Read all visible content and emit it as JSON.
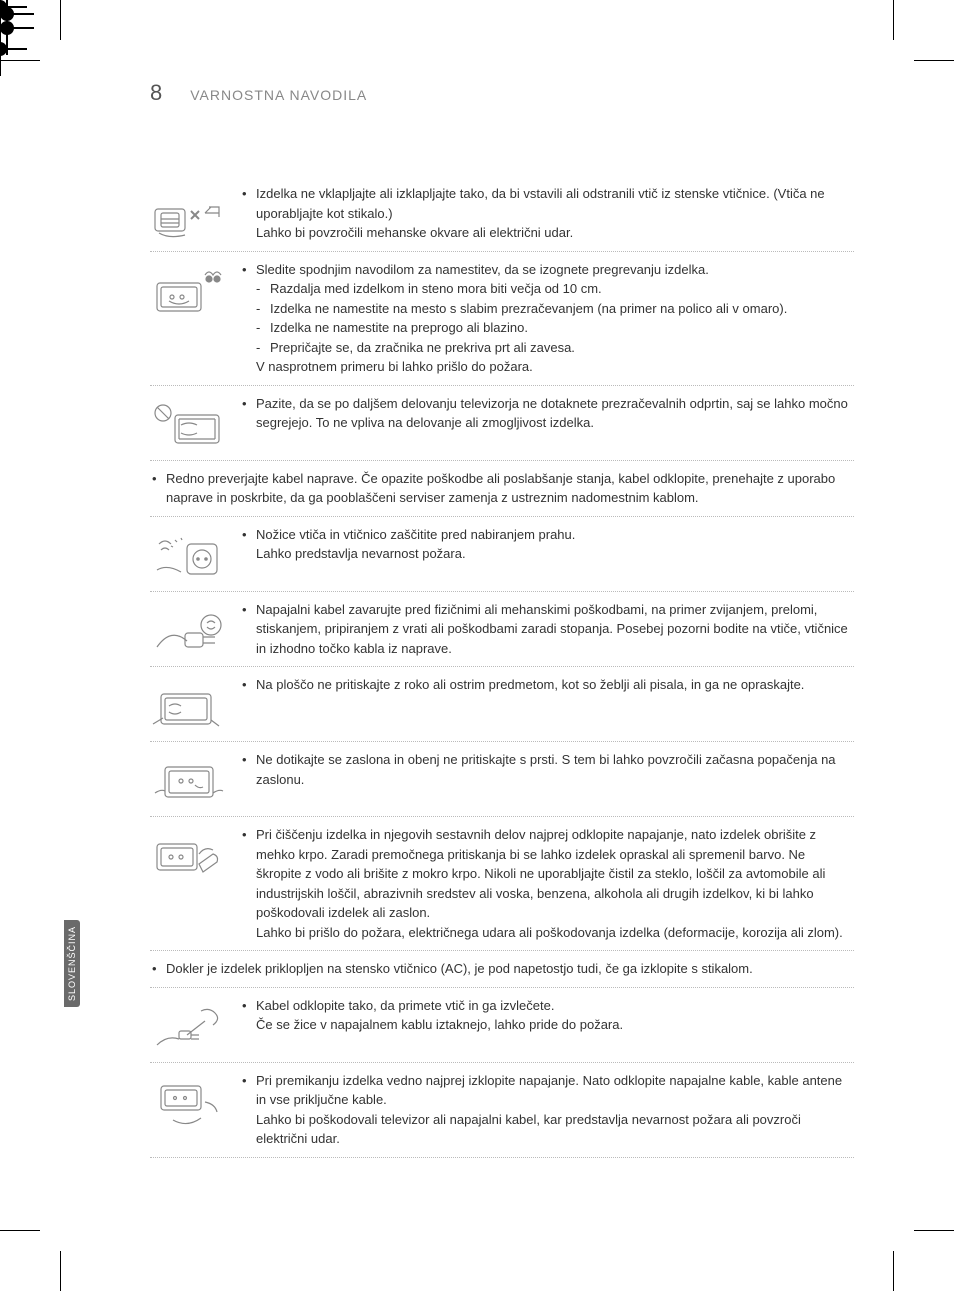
{
  "header": {
    "page_no": "8",
    "title": "VARNOSTNA NAVODILA"
  },
  "sidebar": {
    "label": "SLOVENŠČINA"
  },
  "items": [
    {
      "kind": "icon",
      "icon": "plug-x",
      "bullets": [
        {
          "type": "dot",
          "text": "Izdelka ne vklapljajte ali izklapljajte tako, da bi vstavili ali odstranili vtič iz stenske vtičnice. (Vtiča ne uporabljajte kot stikalo.)"
        },
        {
          "type": "plain",
          "text": "Lahko bi povzročili mehanske okvare ali električni udar."
        }
      ]
    },
    {
      "kind": "icon",
      "icon": "tv-fire",
      "bullets": [
        {
          "type": "dot",
          "text": "Sledite spodnjim navodilom za namestitev, da se izognete pregrevanju izdelka."
        },
        {
          "type": "dash",
          "indent": true,
          "text": "Razdalja med izdelkom in steno mora biti večja od 10 cm."
        },
        {
          "type": "dash",
          "indent": true,
          "text": "Izdelka ne namestite na mesto s slabim prezračevanjem (na primer na polico ali v omaro)."
        },
        {
          "type": "dash",
          "indent": true,
          "text": "Izdelka ne namestite na preprogo ali blazino."
        },
        {
          "type": "dash",
          "indent": true,
          "text": "Prepričajte se, da zračnika ne prekriva prt ali zavesa."
        },
        {
          "type": "plain",
          "text": "V nasprotnem primeru bi lahko prišlo do požara."
        }
      ]
    },
    {
      "kind": "icon",
      "icon": "prohibit-tv",
      "bullets": [
        {
          "type": "dot",
          "text": "Pazite, da se po daljšem delovanju televizorja ne dotaknete prezračevalnih odprtin, saj se lahko močno segrejejo. To ne vpliva na delovanje ali zmogljivost izdelka."
        }
      ]
    },
    {
      "kind": "full",
      "bullets": [
        {
          "type": "dot",
          "text": "Redno preverjajte kabel naprave. Če opazite poškodbe ali poslabšanje stanja, kabel odklopite, prenehajte z uporabo naprave in poskrbite, da ga pooblaščeni serviser zamenja z ustreznim nadomestnim kablom."
        }
      ]
    },
    {
      "kind": "icon",
      "icon": "dust-socket",
      "bullets": [
        {
          "type": "dot",
          "text": "Nožice vtiča in vtičnico zaščitite pred nabiranjem prahu."
        },
        {
          "type": "plain",
          "text": "Lahko predstavlja nevarnost požara."
        }
      ]
    },
    {
      "kind": "icon",
      "icon": "cable-hand",
      "bullets": [
        {
          "type": "dot",
          "text": "Napajalni kabel zavarujte pred fizičnimi ali mehanskimi poškodbami, na primer zvijanjem, prelomi, stiskanjem, pripiranjem z vrati ali poškodbami zaradi stopanja. Posebej pozorni bodite na vtiče, vtičnice in izhodno točko kabla iz naprave."
        }
      ]
    },
    {
      "kind": "icon",
      "icon": "press-screen",
      "bullets": [
        {
          "type": "dot",
          "text": "Na ploščo ne pritiskajte z roko ali ostrim predmetom, kot so žeblji ali pisala, in ga ne opraskajte."
        }
      ]
    },
    {
      "kind": "icon",
      "icon": "touch-screen",
      "bullets": [
        {
          "type": "dot",
          "text": "Ne dotikajte se zaslona in obenj ne pritiskajte s prsti. S tem bi lahko povzročili začasna popačenja na zaslonu."
        }
      ]
    },
    {
      "kind": "icon",
      "icon": "clean-tv",
      "bullets": [
        {
          "type": "dot",
          "text": "Pri čiščenju izdelka in njegovih sestavnih delov najprej odklopite napajanje, nato izdelek obrišite z mehko krpo. Zaradi premočnega pritiskanja bi se lahko izdelek opraskal ali spremenil barvo. Ne škropite z vodo ali brišite z mokro krpo. Nikoli ne uporabljajte čistil za steklo, loščil za avtomobile ali industrijskih loščil, abrazivnih sredstev ali voska, benzena, alkohola ali drugih izdelkov, ki bi lahko poškodovali izdelek ali zaslon."
        },
        {
          "type": "plain",
          "text": "Lahko bi prišlo do požara, električnega udara ali poškodovanja izdelka (deformacije, korozija ali zlom)."
        }
      ]
    },
    {
      "kind": "full",
      "bullets": [
        {
          "type": "dot",
          "text": "Dokler je izdelek priklopljen na stensko vtičnico (AC), je pod napetostjo tudi, če ga izklopite s stikalom."
        }
      ]
    },
    {
      "kind": "icon",
      "icon": "pull-plug",
      "bullets": [
        {
          "type": "dot",
          "text": "Kabel odklopite tako, da primete vtič in ga izvlečete."
        },
        {
          "type": "plain",
          "text": "Če se žice v napajalnem kablu iztaknejo, lahko pride do požara."
        }
      ]
    },
    {
      "kind": "icon",
      "icon": "move-tv",
      "bullets": [
        {
          "type": "dot",
          "text": "Pri premikanju izdelka vedno najprej izklopite napajanje. Nato odklopite napajalne kable, kable antene in vse priključne kable."
        },
        {
          "type": "plain",
          "text": "Lahko bi poškodovali televizor ali napajalni kabel, kar predstavlja nevarnost požara ali povzroči električni udar."
        }
      ]
    }
  ],
  "style": {
    "body_color": "#333333",
    "muted_color": "#888888",
    "border_color": "#bbbbbb",
    "tab_bg": "#6a6a6a",
    "font_size_body": 13,
    "font_size_pageno": 22,
    "font_size_title": 14
  }
}
